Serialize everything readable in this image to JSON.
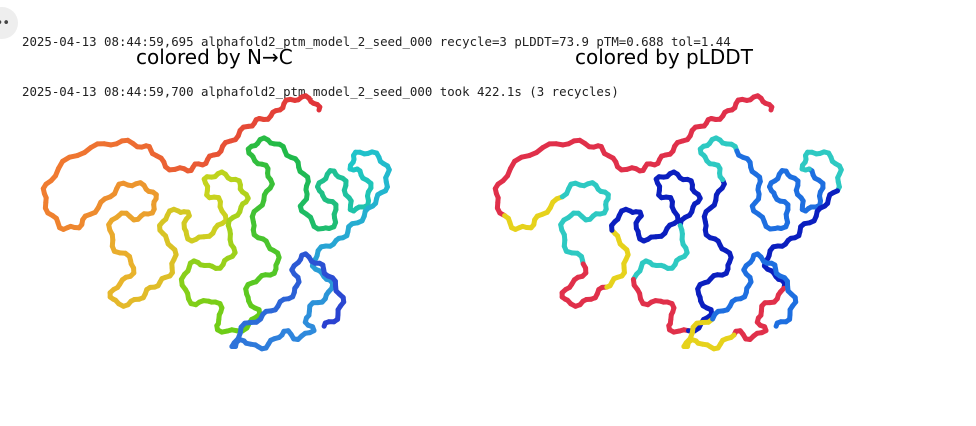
{
  "output": {
    "log_lines": [
      "2025-04-13 08:44:59,695 alphafold2_ptm_model_2_seed_000 recycle=3 pLDDT=73.9 pTM=0.688 tol=1.44",
      "2025-04-13 08:44:59,700 alphafold2_ptm_model_2_seed_000 took 422.1s (3 recycles)"
    ]
  },
  "panels": {
    "left_title": "colored by N→C",
    "right_title": "colored by pLDDT"
  },
  "icons": {
    "cell_menu": "more-dots-icon"
  },
  "colors": {
    "n_to_c_gradient": [
      "#e0313a",
      "#f07a30",
      "#e8b52c",
      "#c7d41e",
      "#6bcd17",
      "#1fb94a",
      "#1fc6c9",
      "#2f86dd",
      "#2a3fd0"
    ],
    "plddt_very_high": "#0b1fbf",
    "plddt_confident": "#1e6fe0",
    "plddt_medium": "#2ec9c2",
    "plddt_low": "#e6d21c",
    "plddt_very_low": "#e0304a"
  }
}
